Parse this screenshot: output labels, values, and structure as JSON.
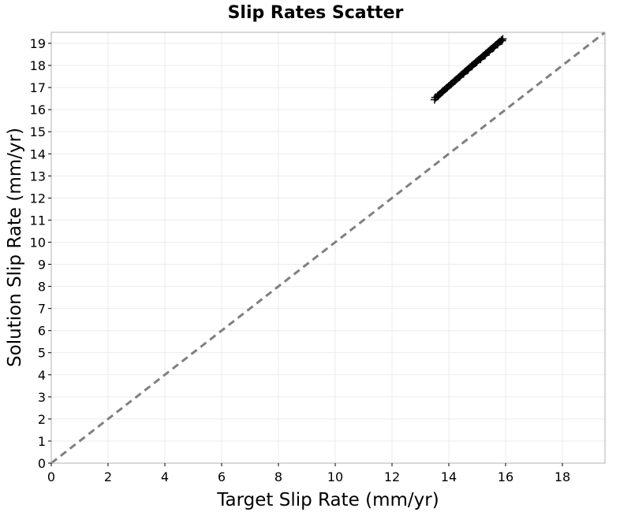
{
  "chart_data": {
    "type": "scatter",
    "title": "Slip Rates Scatter",
    "xlabel": "Target Slip Rate (mm/yr)",
    "ylabel": "Solution Slip Rate (mm/yr)",
    "xlim": [
      0,
      19.5
    ],
    "ylim": [
      0,
      19.5
    ],
    "xticks": [
      0,
      2,
      4,
      6,
      8,
      10,
      12,
      14,
      16,
      18
    ],
    "yticks": [
      0,
      1,
      2,
      3,
      4,
      5,
      6,
      7,
      8,
      9,
      10,
      11,
      12,
      13,
      14,
      15,
      16,
      17,
      18,
      19
    ],
    "grid": true,
    "marker": "+",
    "reference_line": {
      "style": "dashed",
      "color": "#808080",
      "from": [
        0,
        0
      ],
      "to": [
        19.5,
        19.5
      ]
    },
    "series": [
      {
        "color": "#000000",
        "x": [
          13.5,
          13.55,
          13.6,
          13.65,
          13.7,
          13.75,
          13.8,
          13.85,
          13.9,
          13.95,
          14.0,
          14.05,
          14.1,
          14.15,
          14.2,
          14.25,
          14.3,
          14.35,
          14.4,
          14.45,
          14.5,
          14.55,
          14.6,
          14.65,
          14.7,
          14.75,
          14.8,
          14.85,
          14.9,
          14.95,
          15.0,
          15.05,
          15.1,
          15.15,
          15.2,
          15.25,
          15.3,
          15.35,
          15.4,
          15.45,
          15.5,
          15.55,
          15.6,
          15.65,
          15.7,
          15.75,
          15.8,
          15.85,
          15.9,
          13.52,
          13.62,
          13.78,
          13.92,
          14.08,
          14.22,
          14.38,
          14.52,
          14.68,
          14.82,
          14.98,
          15.12,
          15.28,
          15.42,
          15.58,
          15.72,
          15.88
        ],
        "y": [
          16.45,
          16.55,
          16.6,
          16.65,
          16.72,
          16.78,
          16.85,
          16.9,
          16.95,
          17.0,
          17.07,
          17.12,
          17.18,
          17.23,
          17.3,
          17.35,
          17.4,
          17.46,
          17.52,
          17.58,
          17.63,
          17.7,
          17.75,
          17.8,
          17.86,
          17.92,
          17.98,
          18.03,
          18.08,
          18.14,
          18.2,
          18.25,
          18.3,
          18.36,
          18.42,
          18.47,
          18.53,
          18.58,
          18.64,
          18.7,
          18.75,
          18.8,
          18.86,
          18.92,
          18.97,
          19.03,
          19.08,
          19.14,
          19.2,
          16.55,
          16.65,
          16.82,
          16.98,
          17.15,
          17.3,
          17.48,
          17.62,
          17.8,
          17.96,
          18.15,
          18.28,
          18.46,
          18.62,
          18.8,
          18.95,
          19.12
        ]
      }
    ]
  }
}
